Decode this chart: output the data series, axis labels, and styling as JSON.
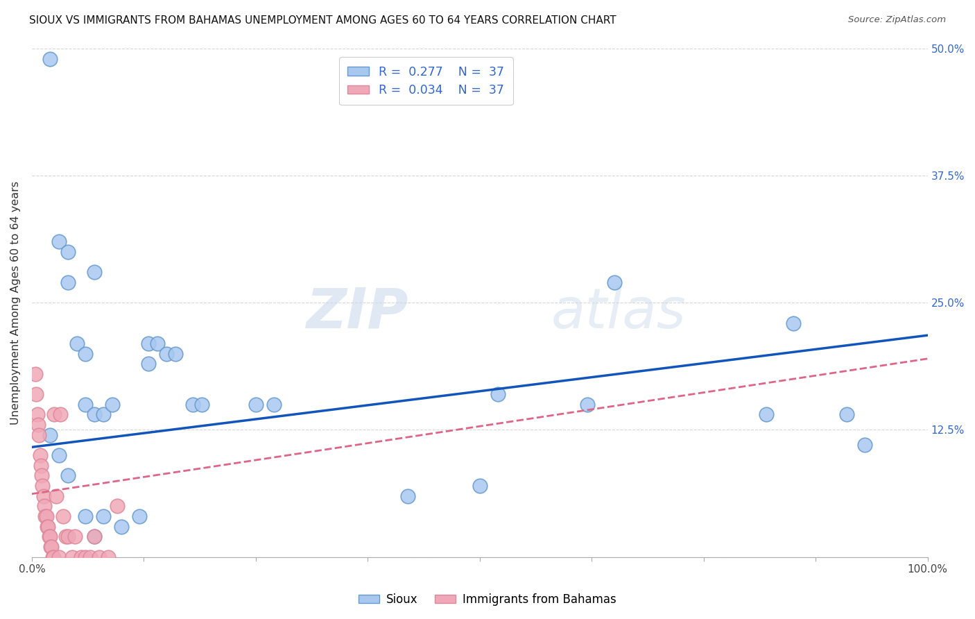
{
  "title": "SIOUX VS IMMIGRANTS FROM BAHAMAS UNEMPLOYMENT AMONG AGES 60 TO 64 YEARS CORRELATION CHART",
  "source": "Source: ZipAtlas.com",
  "ylabel": "Unemployment Among Ages 60 to 64 years",
  "xlim": [
    0,
    1.0
  ],
  "ylim": [
    0,
    0.5
  ],
  "xticks": [
    0.0,
    0.125,
    0.25,
    0.375,
    0.5,
    0.625,
    0.75,
    0.875,
    1.0
  ],
  "xticklabels": [
    "0.0%",
    "",
    "",
    "",
    "",
    "",
    "",
    "",
    "100.0%"
  ],
  "ytick_positions": [
    0.0,
    0.125,
    0.25,
    0.375,
    0.5
  ],
  "yticklabels_right": [
    "",
    "12.5%",
    "25.0%",
    "37.5%",
    "50.0%"
  ],
  "watermark_zip": "ZIP",
  "watermark_atlas": "atlas",
  "sioux_color": "#a8c8f0",
  "sioux_edge": "#6699cc",
  "bahamas_color": "#f0a8b8",
  "bahamas_edge": "#dd8899",
  "line_blue": "#1155bb",
  "line_pink": "#dd6688",
  "background": "#ffffff",
  "grid_color": "#cccccc",
  "blue_line_x0": 0.0,
  "blue_line_y0": 0.108,
  "blue_line_x1": 1.0,
  "blue_line_y1": 0.218,
  "pink_line_x0": 0.0,
  "pink_line_y0": 0.062,
  "pink_line_x1": 1.0,
  "pink_line_y1": 0.195,
  "sioux_x": [
    0.02,
    0.03,
    0.04,
    0.04,
    0.05,
    0.06,
    0.06,
    0.07,
    0.07,
    0.08,
    0.09,
    0.1,
    0.12,
    0.13,
    0.13,
    0.14,
    0.15,
    0.16,
    0.18,
    0.19,
    0.25,
    0.27,
    0.42,
    0.5,
    0.52,
    0.62,
    0.65,
    0.82,
    0.85,
    0.91,
    0.93,
    0.02,
    0.03,
    0.04,
    0.06,
    0.07,
    0.08
  ],
  "sioux_y": [
    0.49,
    0.31,
    0.27,
    0.3,
    0.21,
    0.2,
    0.15,
    0.14,
    0.28,
    0.14,
    0.15,
    0.03,
    0.04,
    0.21,
    0.19,
    0.21,
    0.2,
    0.2,
    0.15,
    0.15,
    0.15,
    0.15,
    0.06,
    0.07,
    0.16,
    0.15,
    0.27,
    0.14,
    0.23,
    0.14,
    0.11,
    0.12,
    0.1,
    0.08,
    0.04,
    0.02,
    0.04
  ],
  "bahamas_x": [
    0.004,
    0.005,
    0.006,
    0.007,
    0.008,
    0.009,
    0.01,
    0.011,
    0.012,
    0.013,
    0.014,
    0.015,
    0.016,
    0.017,
    0.018,
    0.019,
    0.02,
    0.021,
    0.022,
    0.023,
    0.024,
    0.025,
    0.027,
    0.03,
    0.032,
    0.035,
    0.038,
    0.04,
    0.045,
    0.048,
    0.055,
    0.06,
    0.065,
    0.07,
    0.075,
    0.085,
    0.095
  ],
  "bahamas_y": [
    0.18,
    0.16,
    0.14,
    0.13,
    0.12,
    0.1,
    0.09,
    0.08,
    0.07,
    0.06,
    0.05,
    0.04,
    0.04,
    0.03,
    0.03,
    0.02,
    0.02,
    0.01,
    0.01,
    0.0,
    0.0,
    0.14,
    0.06,
    0.0,
    0.14,
    0.04,
    0.02,
    0.02,
    0.0,
    0.02,
    0.0,
    0.0,
    0.0,
    0.02,
    0.0,
    0.0,
    0.05
  ]
}
